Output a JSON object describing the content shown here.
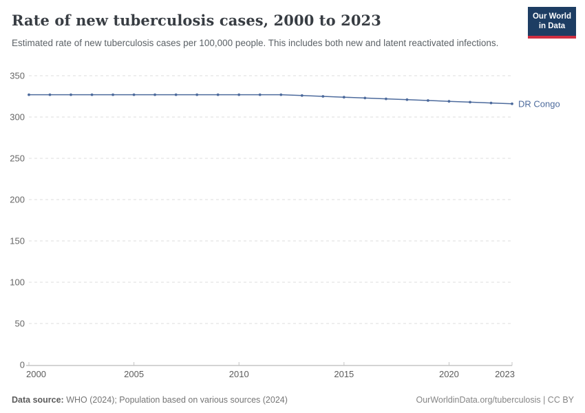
{
  "header": {
    "title": "Rate of new tuberculosis cases, 2000 to 2023",
    "subtitle": "Estimated rate of new tuberculosis cases per 100,000 people. This includes both new and latent reactivated infections."
  },
  "logo": {
    "line1": "Our World",
    "line2": "in Data",
    "bg_color": "#1d3d63",
    "accent_color": "#cf2e41"
  },
  "chart_data": {
    "type": "line",
    "title": "Rate of new tuberculosis cases, 2000 to 2023",
    "x": [
      2000,
      2001,
      2002,
      2003,
      2004,
      2005,
      2006,
      2007,
      2008,
      2009,
      2010,
      2011,
      2012,
      2013,
      2014,
      2015,
      2016,
      2017,
      2018,
      2019,
      2020,
      2021,
      2022,
      2023
    ],
    "series": [
      {
        "name": "DR Congo",
        "color": "#4c6a9c",
        "values": [
          327,
          327,
          327,
          327,
          327,
          327,
          327,
          327,
          327,
          327,
          327,
          327,
          327,
          326,
          325,
          324,
          323,
          322,
          321,
          320,
          319,
          318,
          317,
          316
        ]
      }
    ],
    "xlabel": "",
    "ylabel": "",
    "ylim": [
      0,
      350
    ],
    "yticks": [
      0,
      50,
      100,
      150,
      200,
      250,
      300,
      350
    ],
    "xticks": [
      2000,
      2005,
      2010,
      2015,
      2020,
      2023
    ],
    "grid": "horizontal-dashed",
    "legend_position": "line-end-label",
    "grid_color": "#dddddd",
    "axis_color": "#a8a8a8",
    "tick_label_color": "#666666"
  },
  "footer": {
    "source_label": "Data source:",
    "source_text": " WHO (2024); Population based on various sources (2024)",
    "right_text": "OurWorldinData.org/tuberculosis | CC BY"
  }
}
